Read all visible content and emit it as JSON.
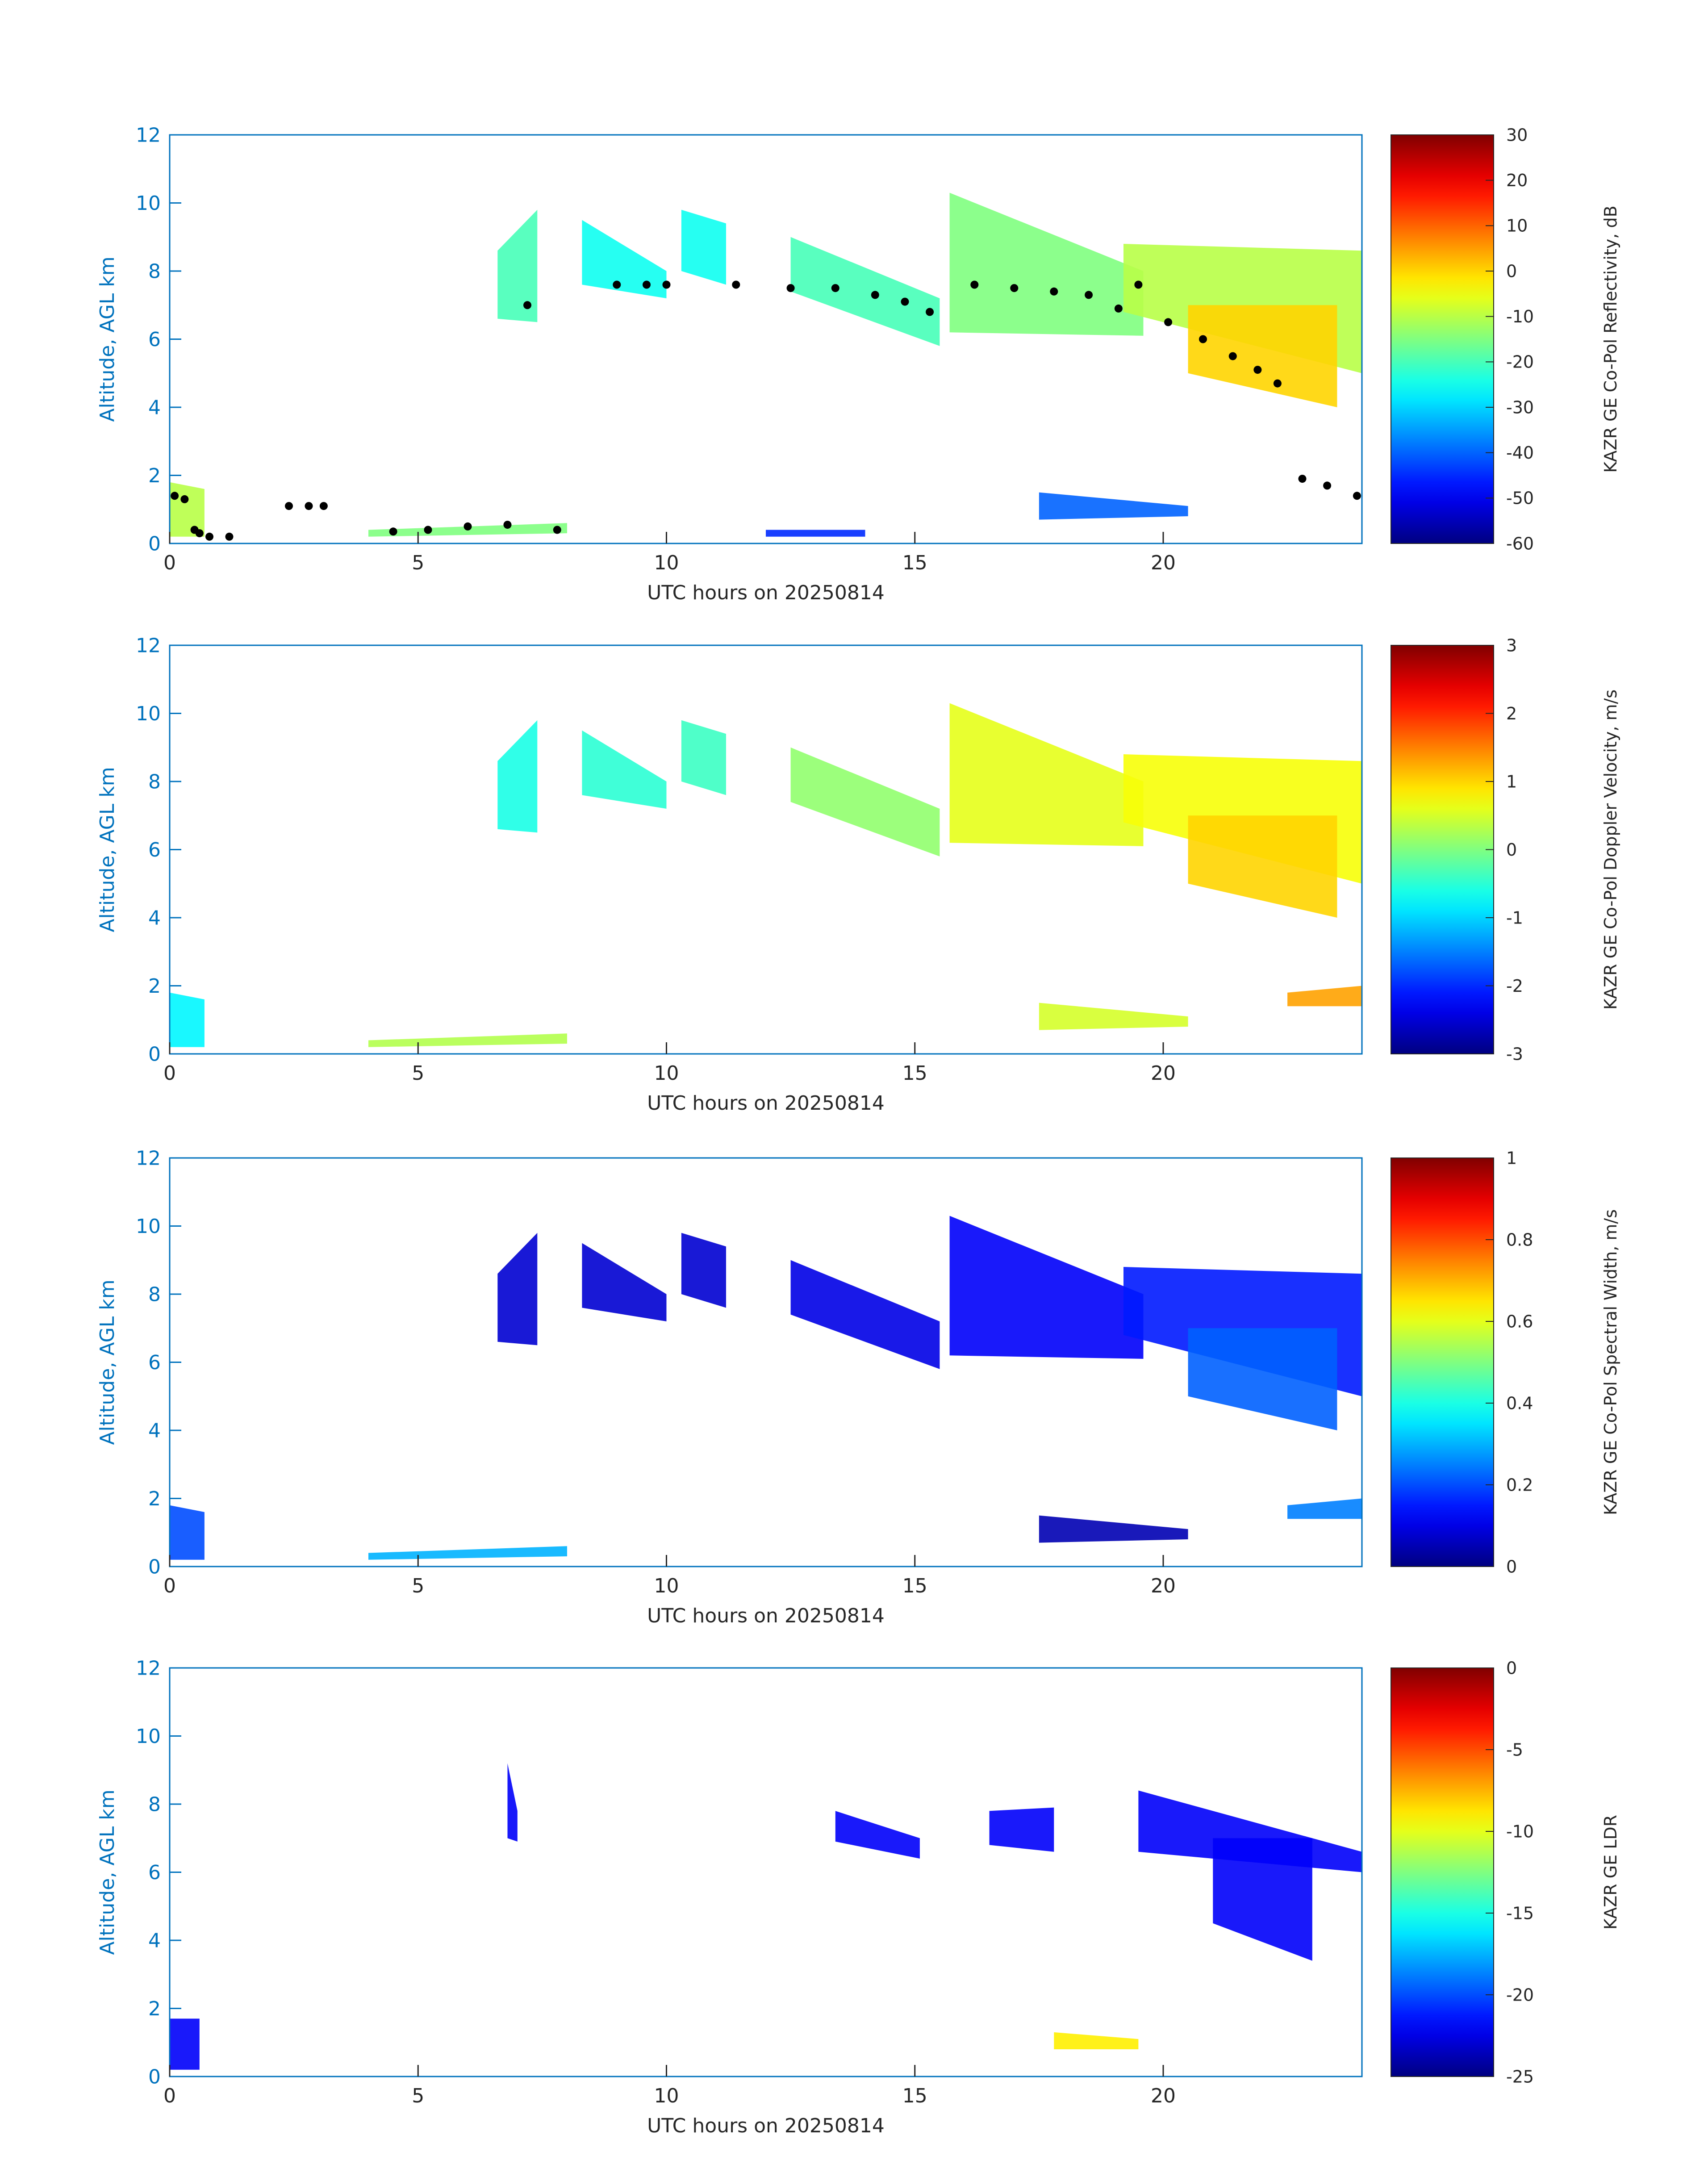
{
  "colors": {
    "axis": "#0072BD",
    "text": "#262626",
    "retrieval_points": "#000000",
    "background": "#ffffff"
  },
  "colormap": "jet",
  "chart_data": [
    {
      "type": "heatmap",
      "xlabel": "UTC hours on 20250814",
      "ylabel": "Altitude, AGL km",
      "xlim": [
        0,
        24
      ],
      "ylim": [
        0,
        12
      ],
      "xticks": [
        0,
        5,
        10,
        15,
        20
      ],
      "yticks": [
        0,
        2,
        4,
        6,
        8,
        10,
        12
      ],
      "colorbar": {
        "label": "KAZR GE Co-Pol Reflectivity, dB",
        "min": -60,
        "max": 30,
        "ticks": [
          30,
          20,
          10,
          0,
          -10,
          -20,
          -30,
          -40,
          -50,
          -60
        ]
      },
      "overlay_points_color": "black",
      "regions": [
        {
          "x": [
            6.6,
            7.4
          ],
          "ybot": [
            6.6,
            6.5
          ],
          "ytop": [
            8.6,
            9.8
          ],
          "value": -20
        },
        {
          "x": [
            8.3,
            10.0
          ],
          "ybot": [
            7.6,
            7.2
          ],
          "ytop": [
            9.5,
            8.0
          ],
          "value": -25
        },
        {
          "x": [
            10.3,
            11.2
          ],
          "ybot": [
            8.0,
            7.6
          ],
          "ytop": [
            9.8,
            9.4
          ],
          "value": -25
        },
        {
          "x": [
            12.5,
            15.5
          ],
          "ybot": [
            7.4,
            5.8
          ],
          "ytop": [
            9.0,
            7.2
          ],
          "value": -20
        },
        {
          "x": [
            15.7,
            19.6
          ],
          "ybot": [
            6.2,
            6.1
          ],
          "ytop": [
            10.3,
            8.0
          ],
          "value": -15
        },
        {
          "x": [
            19.2,
            24.0
          ],
          "ybot": [
            6.8,
            5.0
          ],
          "ytop": [
            8.8,
            8.6
          ],
          "value": -10
        },
        {
          "x": [
            20.5,
            23.5
          ],
          "ybot": [
            5.0,
            4.0
          ],
          "ytop": [
            7.0,
            7.0
          ],
          "value": 0
        },
        {
          "x": [
            17.5,
            20.5
          ],
          "ybot": [
            0.7,
            0.8
          ],
          "ytop": [
            1.5,
            1.1
          ],
          "value": -40
        },
        {
          "x": [
            0.0,
            0.7
          ],
          "ybot": [
            0.2,
            0.2
          ],
          "ytop": [
            1.8,
            1.6
          ],
          "value": -10
        },
        {
          "x": [
            4.0,
            8.0
          ],
          "ybot": [
            0.2,
            0.3
          ],
          "ytop": [
            0.4,
            0.6
          ],
          "value": -15
        },
        {
          "x": [
            12.0,
            14.0
          ],
          "ybot": [
            0.2,
            0.2
          ],
          "ytop": [
            0.4,
            0.4
          ],
          "value": -45
        }
      ],
      "points": {
        "x": [
          0.1,
          0.3,
          0.5,
          0.6,
          0.8,
          1.2,
          2.4,
          2.8,
          3.1,
          4.5,
          5.2,
          6.0,
          6.8,
          7.2,
          7.8,
          9.0,
          9.6,
          10.0,
          11.4,
          12.5,
          13.4,
          14.2,
          14.8,
          15.3,
          16.2,
          17.0,
          17.8,
          18.5,
          19.1,
          19.5,
          20.1,
          20.8,
          21.4,
          21.9,
          22.3,
          22.8,
          23.3,
          23.9
        ],
        "y": [
          1.4,
          1.3,
          0.4,
          0.3,
          0.2,
          0.2,
          1.1,
          1.1,
          1.1,
          0.35,
          0.4,
          0.5,
          0.55,
          7.0,
          0.4,
          7.6,
          7.6,
          7.6,
          7.6,
          7.5,
          7.5,
          7.3,
          7.1,
          6.8,
          7.6,
          7.5,
          7.4,
          7.3,
          6.9,
          7.6,
          6.5,
          6.0,
          5.5,
          5.1,
          4.7,
          1.9,
          1.7,
          1.4
        ]
      }
    },
    {
      "type": "heatmap",
      "xlabel": "UTC hours on 20250814",
      "ylabel": "Altitude, AGL km",
      "xlim": [
        0,
        24
      ],
      "ylim": [
        0,
        12
      ],
      "xticks": [
        0,
        5,
        10,
        15,
        20
      ],
      "yticks": [
        0,
        2,
        4,
        6,
        8,
        10,
        12
      ],
      "colorbar": {
        "label": "KAZR GE Co-Pol Doppler Velocity, m/s",
        "min": -3,
        "max": 3,
        "ticks": [
          3,
          2,
          1,
          0,
          -1,
          -2,
          -3
        ]
      },
      "regions": [
        {
          "x": [
            6.6,
            7.4
          ],
          "ybot": [
            6.6,
            6.5
          ],
          "ytop": [
            8.6,
            9.8
          ],
          "value": -0.6
        },
        {
          "x": [
            8.3,
            10.0
          ],
          "ybot": [
            7.6,
            7.2
          ],
          "ytop": [
            9.5,
            8.0
          ],
          "value": -0.5
        },
        {
          "x": [
            10.3,
            11.2
          ],
          "ybot": [
            8.0,
            7.6
          ],
          "ytop": [
            9.8,
            9.4
          ],
          "value": -0.4
        },
        {
          "x": [
            12.5,
            15.5
          ],
          "ybot": [
            7.4,
            5.8
          ],
          "ytop": [
            9.0,
            7.2
          ],
          "value": 0.1
        },
        {
          "x": [
            15.7,
            19.6
          ],
          "ybot": [
            6.2,
            6.1
          ],
          "ytop": [
            10.3,
            8.0
          ],
          "value": 0.6
        },
        {
          "x": [
            19.2,
            24.0
          ],
          "ybot": [
            6.8,
            5.0
          ],
          "ytop": [
            8.8,
            8.6
          ],
          "value": 0.7
        },
        {
          "x": [
            20.5,
            23.5
          ],
          "ybot": [
            5.0,
            4.0
          ],
          "ytop": [
            7.0,
            7.0
          ],
          "value": 1.0
        },
        {
          "x": [
            17.5,
            20.5
          ],
          "ybot": [
            0.7,
            0.8
          ],
          "ytop": [
            1.5,
            1.1
          ],
          "value": 0.5
        },
        {
          "x": [
            0.0,
            0.7
          ],
          "ybot": [
            0.2,
            0.2
          ],
          "ytop": [
            1.8,
            1.6
          ],
          "value": -0.8
        },
        {
          "x": [
            4.0,
            8.0
          ],
          "ybot": [
            0.2,
            0.3
          ],
          "ytop": [
            0.4,
            0.6
          ],
          "value": 0.3
        },
        {
          "x": [
            22.5,
            24.0
          ],
          "ybot": [
            1.4,
            1.4
          ],
          "ytop": [
            1.8,
            2.0
          ],
          "value": 1.3
        }
      ]
    },
    {
      "type": "heatmap",
      "xlabel": "UTC hours on 20250814",
      "ylabel": "Altitude, AGL km",
      "xlim": [
        0,
        24
      ],
      "ylim": [
        0,
        12
      ],
      "xticks": [
        0,
        5,
        10,
        15,
        20
      ],
      "yticks": [
        0,
        2,
        4,
        6,
        8,
        10,
        12
      ],
      "colorbar": {
        "label": "KAZR GE Co-Pol Spectral Width, m/s",
        "min": 0,
        "max": 1,
        "ticks": [
          1,
          0.8,
          0.6,
          0.4,
          0.2,
          0
        ]
      },
      "regions": [
        {
          "x": [
            6.6,
            7.4
          ],
          "ybot": [
            6.6,
            6.5
          ],
          "ytop": [
            8.6,
            9.8
          ],
          "value": 0.08
        },
        {
          "x": [
            8.3,
            10.0
          ],
          "ybot": [
            7.6,
            7.2
          ],
          "ytop": [
            9.5,
            8.0
          ],
          "value": 0.08
        },
        {
          "x": [
            10.3,
            11.2
          ],
          "ybot": [
            8.0,
            7.6
          ],
          "ytop": [
            9.8,
            9.4
          ],
          "value": 0.08
        },
        {
          "x": [
            12.5,
            15.5
          ],
          "ybot": [
            7.4,
            5.8
          ],
          "ytop": [
            9.0,
            7.2
          ],
          "value": 0.1
        },
        {
          "x": [
            15.7,
            19.6
          ],
          "ybot": [
            6.2,
            6.1
          ],
          "ytop": [
            10.3,
            8.0
          ],
          "value": 0.12
        },
        {
          "x": [
            19.2,
            24.0
          ],
          "ybot": [
            6.8,
            5.0
          ],
          "ytop": [
            8.8,
            8.6
          ],
          "value": 0.15
        },
        {
          "x": [
            20.5,
            23.5
          ],
          "ybot": [
            5.0,
            4.0
          ],
          "ytop": [
            7.0,
            7.0
          ],
          "value": 0.22
        },
        {
          "x": [
            17.5,
            20.5
          ],
          "ybot": [
            0.7,
            0.8
          ],
          "ytop": [
            1.5,
            1.1
          ],
          "value": 0.05
        },
        {
          "x": [
            0.0,
            0.7
          ],
          "ybot": [
            0.2,
            0.2
          ],
          "ytop": [
            1.8,
            1.6
          ],
          "value": 0.2
        },
        {
          "x": [
            4.0,
            8.0
          ],
          "ybot": [
            0.2,
            0.3
          ],
          "ytop": [
            0.4,
            0.6
          ],
          "value": 0.3
        },
        {
          "x": [
            22.5,
            24.0
          ],
          "ybot": [
            1.4,
            1.4
          ],
          "ytop": [
            1.8,
            2.0
          ],
          "value": 0.25
        }
      ]
    },
    {
      "type": "heatmap",
      "xlabel": "UTC hours on 20250814",
      "ylabel": "Altitude, AGL km",
      "xlim": [
        0,
        24
      ],
      "ylim": [
        0,
        12
      ],
      "xticks": [
        0,
        5,
        10,
        15,
        20
      ],
      "yticks": [
        0,
        2,
        4,
        6,
        8,
        10,
        12
      ],
      "colorbar": {
        "label": "KAZR GE LDR",
        "min": -25,
        "max": 0,
        "ticks": [
          0,
          -5,
          -10,
          -15,
          -20,
          -25
        ]
      },
      "regions": [
        {
          "x": [
            6.8,
            7.0
          ],
          "ybot": [
            7.0,
            6.9
          ],
          "ytop": [
            9.2,
            7.8
          ],
          "value": -22
        },
        {
          "x": [
            13.4,
            15.1
          ],
          "ybot": [
            6.9,
            6.4
          ],
          "ytop": [
            7.8,
            7.0
          ],
          "value": -22
        },
        {
          "x": [
            16.5,
            17.8
          ],
          "ybot": [
            6.8,
            6.6
          ],
          "ytop": [
            7.8,
            7.9
          ],
          "value": -22
        },
        {
          "x": [
            19.5,
            24.0
          ],
          "ybot": [
            6.6,
            6.0
          ],
          "ytop": [
            8.4,
            6.6
          ],
          "value": -22
        },
        {
          "x": [
            21.0,
            23.0
          ],
          "ybot": [
            4.5,
            3.4
          ],
          "ytop": [
            7.0,
            7.0
          ],
          "value": -22
        },
        {
          "x": [
            0.0,
            0.6
          ],
          "ybot": [
            0.2,
            0.2
          ],
          "ytop": [
            1.7,
            1.7
          ],
          "value": -22
        },
        {
          "x": [
            17.8,
            19.5
          ],
          "ybot": [
            0.8,
            0.8
          ],
          "ytop": [
            1.3,
            1.1
          ],
          "value": -9
        }
      ]
    }
  ]
}
